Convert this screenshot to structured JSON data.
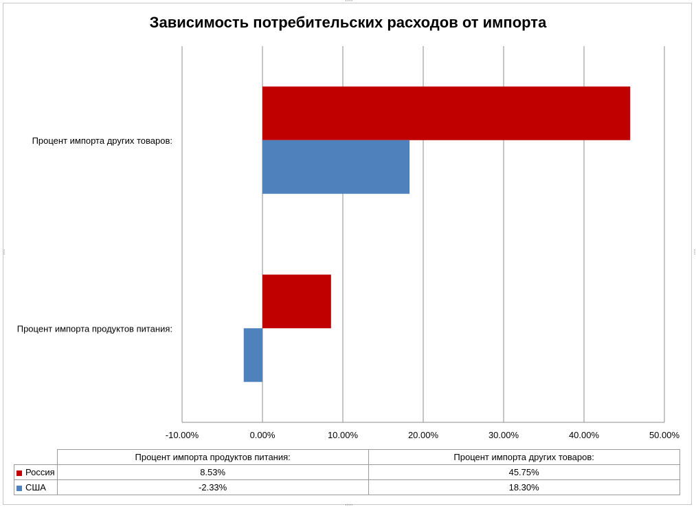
{
  "chart_data": {
    "type": "bar",
    "orientation": "horizontal",
    "title": "Зависимость потребительских расходов от импорта",
    "categories": [
      "Процент импорта продуктов питания:",
      "Процент импорта других товаров:"
    ],
    "series": [
      {
        "name": "Россия",
        "color": "#c00000",
        "values": [
          8.53,
          45.75
        ],
        "labels": [
          "8.53%",
          "45.75%"
        ]
      },
      {
        "name": "США",
        "color": "#4f81bd",
        "values": [
          -2.33,
          18.3
        ],
        "labels": [
          "-2.33%",
          "18.30%"
        ]
      }
    ],
    "xlim": [
      -10,
      50
    ],
    "ticks": [
      "-10.00%",
      "0.00%",
      "10.00%",
      "20.00%",
      "30.00%",
      "40.00%",
      "50.00%"
    ],
    "grid": "vertical",
    "legend": "data-table"
  },
  "table": {
    "headers": [
      "Процент импорта продуктов питания:",
      "Процент импорта других товаров:"
    ]
  }
}
